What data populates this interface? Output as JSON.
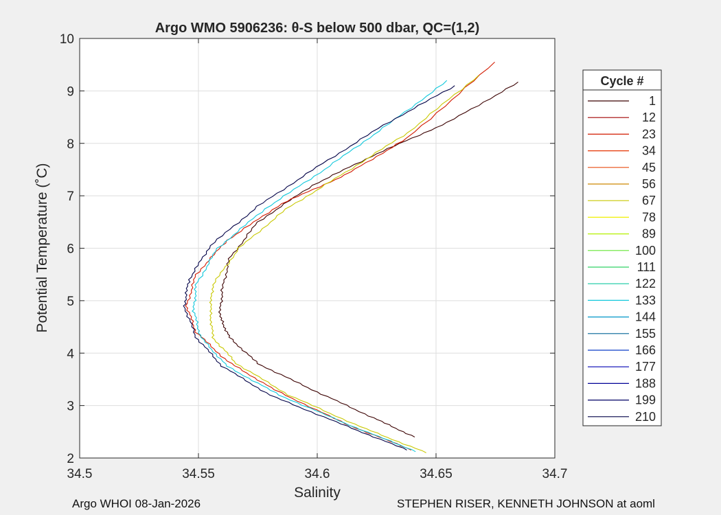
{
  "chart_data": {
    "type": "line",
    "title": "Argo WMO 5906236: θ-S below 500 dbar,  QC=(1,2)",
    "xlabel": "Salinity",
    "ylabel": "Potential Temperature (˚C)",
    "xlim": [
      34.5,
      34.7
    ],
    "ylim": [
      2,
      10
    ],
    "xticks": [
      34.5,
      34.55,
      34.6,
      34.65,
      34.7
    ],
    "yticks": [
      2,
      3,
      4,
      5,
      6,
      7,
      8,
      9,
      10
    ],
    "xtick_labels": [
      "34.5",
      "34.55",
      "34.6",
      "34.65",
      "34.7"
    ],
    "ytick_labels": [
      "2",
      "3",
      "4",
      "5",
      "6",
      "7",
      "8",
      "9",
      "10"
    ],
    "grid": true,
    "legend": {
      "title": "Cycle #",
      "placement": "outside-right",
      "entries": [
        "1",
        "12",
        "23",
        "34",
        "45",
        "56",
        "67",
        "78",
        "89",
        "100",
        "111",
        "122",
        "133",
        "144",
        "155",
        "166",
        "177",
        "188",
        "199",
        "210"
      ],
      "colors": [
        "#3a0000",
        "#a00000",
        "#d21a00",
        "#e63200",
        "#e84c10",
        "#cc8800",
        "#c8c800",
        "#f0f000",
        "#b4f000",
        "#64e632",
        "#32d264",
        "#10c8a0",
        "#10c8dc",
        "#0096c8",
        "#006496",
        "#0a3cc8",
        "#0000b4",
        "#000096",
        "#000064",
        "#000046"
      ]
    },
    "series": [
      {
        "name": "Cycle 1",
        "color": "#3a0000",
        "points": [
          [
            34.641,
            2.4
          ],
          [
            34.622,
            2.8
          ],
          [
            34.598,
            3.3
          ],
          [
            34.575,
            3.8
          ],
          [
            34.563,
            4.3
          ],
          [
            34.559,
            4.7
          ],
          [
            34.56,
            5.2
          ],
          [
            34.563,
            5.8
          ],
          [
            34.575,
            6.5
          ],
          [
            34.598,
            7.2
          ],
          [
            34.625,
            7.8
          ],
          [
            34.655,
            8.4
          ],
          [
            34.685,
            9.17
          ]
        ]
      },
      {
        "name": "Cycle 23",
        "color": "#d21a00",
        "points": [
          [
            34.64,
            2.15
          ],
          [
            34.612,
            2.65
          ],
          [
            34.582,
            3.3
          ],
          [
            34.562,
            3.85
          ],
          [
            34.549,
            4.4
          ],
          [
            34.545,
            4.9
          ],
          [
            34.549,
            5.5
          ],
          [
            34.562,
            6.15
          ],
          [
            34.585,
            6.85
          ],
          [
            34.612,
            7.4
          ],
          [
            34.638,
            8.1
          ],
          [
            34.675,
            9.55
          ]
        ]
      },
      {
        "name": "Cycle 67",
        "color": "#c8c800",
        "points": [
          [
            34.646,
            2.1
          ],
          [
            34.618,
            2.6
          ],
          [
            34.588,
            3.2
          ],
          [
            34.566,
            3.8
          ],
          [
            34.556,
            4.3
          ],
          [
            34.555,
            4.8
          ],
          [
            34.556,
            5.3
          ],
          [
            34.567,
            6.0
          ],
          [
            34.587,
            6.75
          ],
          [
            34.612,
            7.45
          ],
          [
            34.638,
            8.2
          ],
          [
            34.668,
            9.3
          ]
        ]
      },
      {
        "name": "Cycle 133",
        "color": "#10c8dc",
        "points": [
          [
            34.642,
            2.12
          ],
          [
            34.614,
            2.62
          ],
          [
            34.584,
            3.2
          ],
          [
            34.562,
            3.75
          ],
          [
            34.551,
            4.3
          ],
          [
            34.548,
            4.8
          ],
          [
            34.549,
            5.3
          ],
          [
            34.558,
            6.0
          ],
          [
            34.578,
            6.75
          ],
          [
            34.603,
            7.5
          ],
          [
            34.628,
            8.3
          ],
          [
            34.655,
            9.2
          ]
        ]
      },
      {
        "name": "Cycle 210",
        "color": "#000046",
        "points": [
          [
            34.638,
            2.15
          ],
          [
            34.61,
            2.65
          ],
          [
            34.58,
            3.2
          ],
          [
            34.56,
            3.75
          ],
          [
            34.549,
            4.3
          ],
          [
            34.544,
            4.9
          ],
          [
            34.546,
            5.4
          ],
          [
            34.555,
            6.05
          ],
          [
            34.575,
            6.8
          ],
          [
            34.6,
            7.55
          ],
          [
            34.628,
            8.35
          ],
          [
            34.658,
            9.1
          ]
        ]
      }
    ]
  },
  "footer": {
    "left": "Argo WHOI 08-Jan-2026",
    "right": "STEPHEN RISER, KENNETH JOHNSON at aoml"
  }
}
